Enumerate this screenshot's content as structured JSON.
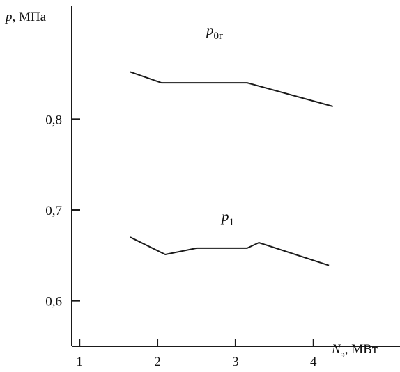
{
  "chart_data": {
    "type": "line",
    "title": "",
    "xlabel": {
      "symbol": "N",
      "subscript": "э",
      "unit": ", МВт"
    },
    "ylabel": {
      "symbol": "p",
      "unit": ", МПа"
    },
    "xlim": [
      0.9,
      5.2
    ],
    "ylim": [
      0.55,
      0.925
    ],
    "x_ticks": [
      1,
      2,
      3,
      4
    ],
    "x_tick_labels": [
      "1",
      "2",
      "3",
      "4"
    ],
    "y_ticks": [
      0.6,
      0.7,
      0.8
    ],
    "y_tick_labels": [
      "0,6",
      "0,7",
      "0,8"
    ],
    "grid": false,
    "series": [
      {
        "name": "p0г",
        "label_main": "p",
        "label_sub": "0г",
        "x": [
          1.65,
          2.05,
          3.15,
          4.25
        ],
        "y": [
          0.852,
          0.84,
          0.84,
          0.814
        ]
      },
      {
        "name": "p1",
        "label_main": "p",
        "label_sub": "1",
        "x": [
          1.65,
          2.1,
          2.5,
          3.15,
          3.3,
          4.2
        ],
        "y": [
          0.67,
          0.651,
          0.658,
          0.658,
          0.664,
          0.639
        ]
      }
    ]
  }
}
